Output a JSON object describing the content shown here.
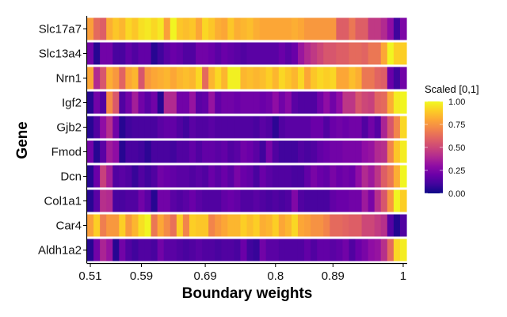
{
  "chart_data": {
    "type": "heatmap",
    "title": "",
    "xlabel": "Boundary weights",
    "ylabel": "Gene",
    "x_tick_labels": [
      "0.51",
      "0.59",
      "0.69",
      "0.8",
      "0.89",
      "1"
    ],
    "x_tick_values": [
      0.51,
      0.59,
      0.69,
      0.8,
      0.89,
      1.0
    ],
    "xlim": [
      0.505,
      1.005
    ],
    "n_columns": 50,
    "genes": [
      "Slc17a7",
      "Slc13a4",
      "Nrn1",
      "Igf2",
      "Gjb2",
      "Fmod",
      "Dcn",
      "Col1a1",
      "Car4",
      "Aldh1a2"
    ],
    "legend": {
      "title": "Scaled [0,1]",
      "tick_labels": [
        "1.00",
        "0.75",
        "0.50",
        "0.25",
        "0.00"
      ],
      "tick_values": [
        1.0,
        0.75,
        0.5,
        0.25,
        0.0
      ],
      "colormap": "plasma",
      "placement": "right"
    },
    "colormap_stops": [
      "#0d0887",
      "#41049d",
      "#6a00a8",
      "#8f0da4",
      "#b12a90",
      "#cc4778",
      "#e16462",
      "#f2844b",
      "#fca636",
      "#fcce25",
      "#f0f921"
    ],
    "rows": [
      {
        "gene": "Slc17a7",
        "values": [
          0.78,
          0.62,
          0.58,
          0.82,
          0.88,
          0.84,
          0.92,
          0.88,
          0.94,
          0.96,
          0.92,
          0.96,
          0.78,
          0.99,
          0.88,
          0.86,
          0.88,
          0.8,
          0.92,
          0.88,
          0.82,
          0.8,
          0.88,
          0.82,
          0.84,
          0.86,
          0.82,
          0.8,
          0.8,
          0.8,
          0.8,
          0.8,
          0.82,
          0.8,
          0.76,
          0.76,
          0.76,
          0.76,
          0.76,
          0.58,
          0.58,
          0.66,
          0.58,
          0.58,
          0.45,
          0.45,
          0.4,
          0.3,
          0.1,
          0.25
        ]
      },
      {
        "gene": "Slc13a4",
        "values": [
          0.22,
          0.05,
          0.22,
          0.22,
          0.12,
          0.12,
          0.18,
          0.14,
          0.18,
          0.18,
          0.05,
          0.1,
          0.16,
          0.2,
          0.18,
          0.14,
          0.14,
          0.22,
          0.22,
          0.2,
          0.16,
          0.2,
          0.18,
          0.16,
          0.14,
          0.16,
          0.16,
          0.16,
          0.16,
          0.16,
          0.2,
          0.16,
          0.2,
          0.33,
          0.4,
          0.45,
          0.5,
          0.55,
          0.55,
          0.58,
          0.58,
          0.62,
          0.62,
          0.6,
          0.66,
          0.66,
          0.8,
          0.99,
          0.9,
          0.9
        ]
      },
      {
        "gene": "Nrn1",
        "values": [
          0.8,
          0.4,
          0.55,
          0.82,
          0.76,
          0.6,
          0.8,
          0.84,
          0.55,
          0.76,
          0.8,
          0.82,
          0.84,
          0.8,
          0.84,
          0.86,
          0.84,
          0.92,
          0.62,
          0.84,
          0.92,
          0.84,
          0.98,
          0.98,
          0.84,
          0.86,
          0.84,
          0.86,
          0.9,
          0.84,
          0.92,
          0.88,
          0.84,
          0.92,
          0.8,
          0.88,
          0.92,
          0.9,
          0.92,
          0.8,
          0.8,
          0.86,
          0.82,
          0.66,
          0.66,
          0.6,
          0.58,
          0.2,
          0.1,
          0.22
        ]
      },
      {
        "gene": "Igf2",
        "values": [
          0.05,
          0.22,
          0.14,
          0.72,
          0.56,
          0.14,
          0.22,
          0.36,
          0.22,
          0.16,
          0.22,
          0.05,
          0.4,
          0.4,
          0.22,
          0.22,
          0.32,
          0.16,
          0.18,
          0.32,
          0.18,
          0.22,
          0.22,
          0.2,
          0.22,
          0.22,
          0.22,
          0.2,
          0.22,
          0.3,
          0.22,
          0.28,
          0.16,
          0.14,
          0.14,
          0.14,
          0.22,
          0.3,
          0.22,
          0.3,
          0.44,
          0.44,
          0.55,
          0.5,
          0.48,
          0.6,
          0.62,
          0.82,
          0.97,
          0.99
        ]
      },
      {
        "gene": "Gjb2",
        "values": [
          0.05,
          0.14,
          0.3,
          0.42,
          0.22,
          0.05,
          0.1,
          0.12,
          0.12,
          0.12,
          0.12,
          0.16,
          0.18,
          0.18,
          0.14,
          0.1,
          0.16,
          0.14,
          0.14,
          0.16,
          0.14,
          0.14,
          0.14,
          0.14,
          0.14,
          0.14,
          0.12,
          0.16,
          0.14,
          0.06,
          0.14,
          0.16,
          0.16,
          0.16,
          0.16,
          0.2,
          0.2,
          0.14,
          0.2,
          0.22,
          0.2,
          0.22,
          0.22,
          0.14,
          0.22,
          0.15,
          0.38,
          0.55,
          0.7,
          0.92
        ]
      },
      {
        "gene": "Fmod",
        "values": [
          0.22,
          0.05,
          0.16,
          0.35,
          0.3,
          0.05,
          0.12,
          0.12,
          0.1,
          0.06,
          0.12,
          0.12,
          0.12,
          0.1,
          0.14,
          0.14,
          0.18,
          0.14,
          0.18,
          0.18,
          0.16,
          0.18,
          0.14,
          0.16,
          0.22,
          0.2,
          0.16,
          0.1,
          0.24,
          0.14,
          0.1,
          0.1,
          0.1,
          0.14,
          0.12,
          0.14,
          0.18,
          0.2,
          0.22,
          0.22,
          0.24,
          0.24,
          0.24,
          0.3,
          0.32,
          0.4,
          0.42,
          0.7,
          0.88,
          0.97
        ]
      },
      {
        "gene": "Dcn",
        "values": [
          0.05,
          0.2,
          0.48,
          0.36,
          0.14,
          0.16,
          0.14,
          0.08,
          0.14,
          0.1,
          0.14,
          0.22,
          0.2,
          0.18,
          0.16,
          0.16,
          0.14,
          0.16,
          0.14,
          0.2,
          0.16,
          0.2,
          0.16,
          0.24,
          0.2,
          0.18,
          0.12,
          0.2,
          0.16,
          0.14,
          0.14,
          0.14,
          0.12,
          0.12,
          0.18,
          0.24,
          0.2,
          0.18,
          0.24,
          0.2,
          0.22,
          0.2,
          0.3,
          0.4,
          0.34,
          0.44,
          0.58,
          0.66,
          0.82,
          0.99
        ]
      },
      {
        "gene": "Col1a1",
        "values": [
          0.05,
          0.16,
          0.42,
          0.4,
          0.12,
          0.12,
          0.14,
          0.14,
          0.22,
          0.16,
          0.05,
          0.22,
          0.22,
          0.16,
          0.14,
          0.16,
          0.2,
          0.16,
          0.14,
          0.14,
          0.14,
          0.18,
          0.2,
          0.18,
          0.14,
          0.14,
          0.16,
          0.14,
          0.12,
          0.14,
          0.12,
          0.14,
          0.26,
          0.14,
          0.12,
          0.12,
          0.12,
          0.12,
          0.18,
          0.2,
          0.2,
          0.22,
          0.22,
          0.34,
          0.24,
          0.42,
          0.55,
          0.76,
          0.99,
          0.9
        ]
      },
      {
        "gene": "Car4",
        "values": [
          0.78,
          0.9,
          0.68,
          0.76,
          0.76,
          0.9,
          0.76,
          0.84,
          0.94,
          0.99,
          0.66,
          0.8,
          0.72,
          0.64,
          0.9,
          0.7,
          0.9,
          0.88,
          0.88,
          0.7,
          0.76,
          0.8,
          0.84,
          0.84,
          0.9,
          0.86,
          0.9,
          0.82,
          0.84,
          0.9,
          0.8,
          0.84,
          0.92,
          0.8,
          0.78,
          0.74,
          0.74,
          0.7,
          0.62,
          0.62,
          0.6,
          0.58,
          0.58,
          0.5,
          0.5,
          0.46,
          0.42,
          0.15,
          0.04,
          0.14
        ]
      },
      {
        "gene": "Aldh1a2",
        "values": [
          0.05,
          0.22,
          0.38,
          0.32,
          0.05,
          0.22,
          0.14,
          0.1,
          0.14,
          0.14,
          0.12,
          0.22,
          0.16,
          0.16,
          0.14,
          0.12,
          0.14,
          0.16,
          0.14,
          0.14,
          0.12,
          0.14,
          0.14,
          0.12,
          0.2,
          0.1,
          0.08,
          0.22,
          0.16,
          0.16,
          0.14,
          0.14,
          0.14,
          0.14,
          0.18,
          0.14,
          0.18,
          0.18,
          0.16,
          0.18,
          0.22,
          0.14,
          0.2,
          0.24,
          0.3,
          0.32,
          0.42,
          0.62,
          0.92,
          0.97
        ]
      }
    ]
  }
}
